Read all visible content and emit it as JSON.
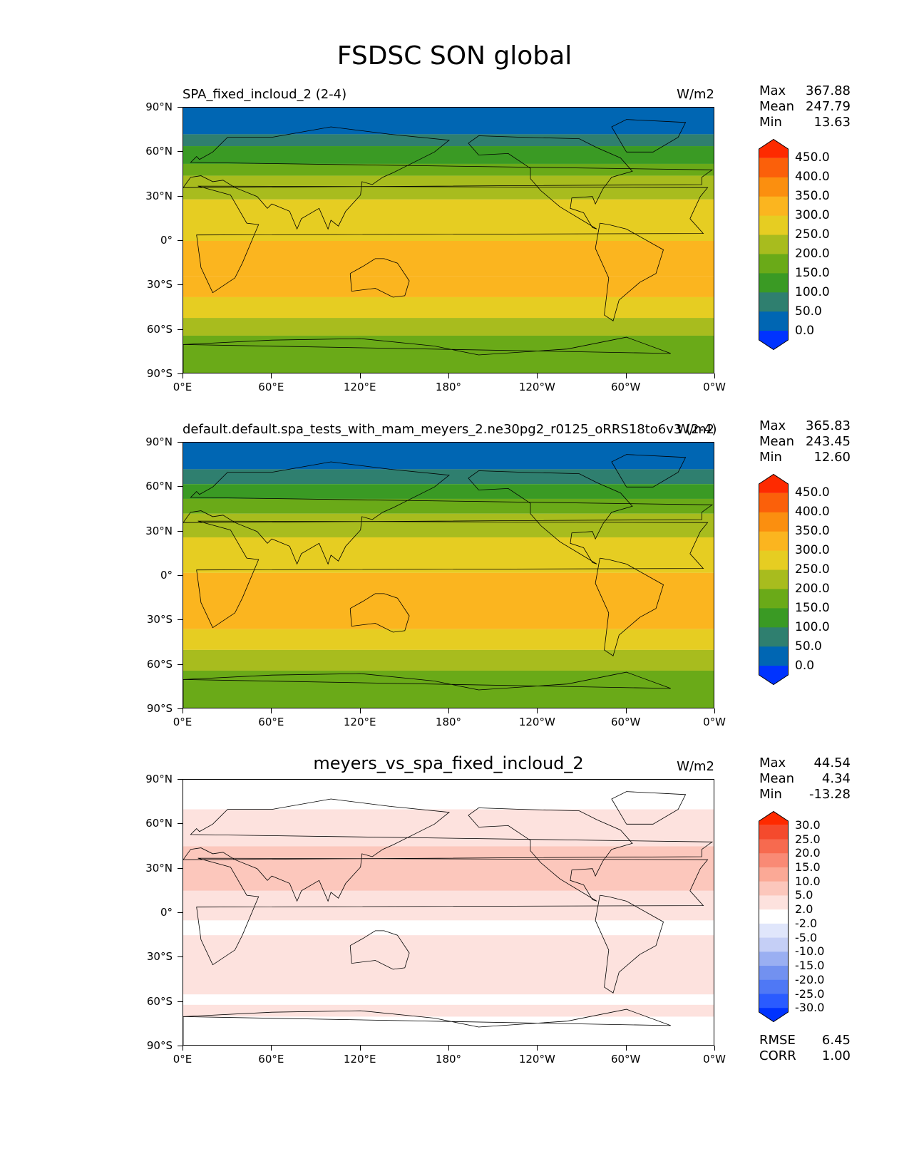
{
  "figure": {
    "title": "FSDSC SON global"
  },
  "axes": {
    "yticks": [
      "90°N",
      "60°N",
      "30°N",
      "0°",
      "30°S",
      "60°S",
      "90°S"
    ],
    "xticks": [
      "0°E",
      "60°E",
      "120°E",
      "180°",
      "120°W",
      "60°W",
      "0°W"
    ]
  },
  "colors": {
    "abs": [
      "#0033ff",
      "#0066b3",
      "#2f7f6f",
      "#3a9a24",
      "#6aaa18",
      "#a8bc1e",
      "#e6cd22",
      "#fbb51f",
      "#fb8f0f",
      "#fb600a",
      "#fe2a00"
    ],
    "diff": [
      "#0033ff",
      "#2a5bff",
      "#4f78f5",
      "#7291f0",
      "#9aaff2",
      "#c5cff6",
      "#e0e6fb",
      "#ffffff",
      "#fde2de",
      "#fcc7bc",
      "#fba996",
      "#f98a75",
      "#f76a4f",
      "#f44a2d",
      "#fe2a00"
    ]
  },
  "chart_data": [
    {
      "type": "heatmap",
      "title": "SPA_fixed_incloud_2 (2-4)",
      "units": "W/m2",
      "stats": {
        "max": "367.88",
        "mean": "247.79",
        "min": "13.63"
      },
      "levels": [
        "0.0",
        "50.0",
        "100.0",
        "150.0",
        "200.0",
        "250.0",
        "300.0",
        "350.0",
        "400.0",
        "450.0"
      ],
      "colormap": "abs",
      "lat_bands": [
        {
          "from": 90,
          "to": 72,
          "value": 25
        },
        {
          "from": 72,
          "to": 64,
          "value": 75
        },
        {
          "from": 64,
          "to": 52,
          "value": 125
        },
        {
          "from": 52,
          "to": 44,
          "value": 175
        },
        {
          "from": 44,
          "to": 28,
          "value": 225
        },
        {
          "from": 28,
          "to": 0,
          "value": 275
        },
        {
          "from": 0,
          "to": -24,
          "value": 325
        },
        {
          "from": -24,
          "to": -38,
          "value": 325
        },
        {
          "from": -38,
          "to": -52,
          "value": 275
        },
        {
          "from": -52,
          "to": -64,
          "value": 225
        },
        {
          "from": -64,
          "to": -90,
          "value": 175
        }
      ]
    },
    {
      "type": "heatmap",
      "title": "default.default.spa_tests_with_mam_meyers_2.ne30pg2_r0125_oRRS18to6v3 (2-4)",
      "units": "W/m2",
      "stats": {
        "max": "365.83",
        "mean": "243.45",
        "min": "12.60"
      },
      "levels": [
        "0.0",
        "50.0",
        "100.0",
        "150.0",
        "200.0",
        "250.0",
        "300.0",
        "350.0",
        "400.0",
        "450.0"
      ],
      "colormap": "abs",
      "lat_bands": [
        {
          "from": 90,
          "to": 72,
          "value": 25
        },
        {
          "from": 72,
          "to": 62,
          "value": 75
        },
        {
          "from": 62,
          "to": 52,
          "value": 125
        },
        {
          "from": 52,
          "to": 42,
          "value": 175
        },
        {
          "from": 42,
          "to": 26,
          "value": 225
        },
        {
          "from": 26,
          "to": 2,
          "value": 275
        },
        {
          "from": 2,
          "to": -36,
          "value": 325
        },
        {
          "from": -36,
          "to": -50,
          "value": 275
        },
        {
          "from": -50,
          "to": -64,
          "value": 225
        },
        {
          "from": -64,
          "to": -90,
          "value": 175
        }
      ]
    },
    {
      "type": "heatmap",
      "title": "meyers_vs_spa_fixed_incloud_2",
      "units": "W/m2",
      "stats": {
        "max": "44.54",
        "mean": "4.34",
        "min": "-13.28"
      },
      "levels": [
        "-30.0",
        "-25.0",
        "-20.0",
        "-15.0",
        "-10.0",
        "-5.0",
        "-2.0",
        "2.0",
        "5.0",
        "10.0",
        "15.0",
        "20.0",
        "25.0",
        "30.0"
      ],
      "colormap": "diff",
      "rmse": "6.45",
      "corr": "1.00",
      "lat_bands": [
        {
          "from": 90,
          "to": 70,
          "value": 0
        },
        {
          "from": 70,
          "to": 45,
          "value": 4
        },
        {
          "from": 45,
          "to": 15,
          "value": 7
        },
        {
          "from": 15,
          "to": -5,
          "value": 3
        },
        {
          "from": -5,
          "to": -15,
          "value": 0
        },
        {
          "from": -15,
          "to": -55,
          "value": 4
        },
        {
          "from": -55,
          "to": -62,
          "value": 0
        },
        {
          "from": -62,
          "to": -70,
          "value": 3
        },
        {
          "from": -70,
          "to": -90,
          "value": 0
        }
      ]
    }
  ],
  "labels": {
    "max": "Max",
    "mean": "Mean",
    "min": "Min",
    "rmse": "RMSE",
    "corr": "CORR"
  }
}
